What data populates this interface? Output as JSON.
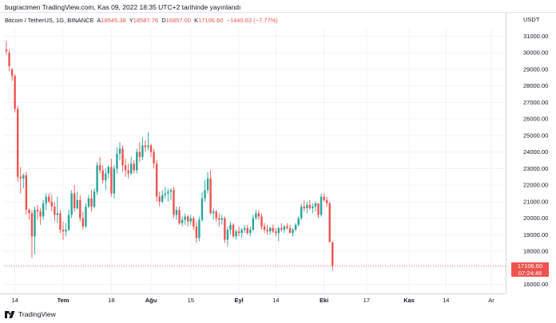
{
  "header": {
    "publisher_line": "bugracimen TradingView.com, Kas 09, 2022 18:35 UTC+2 tarihinde yayınlandı"
  },
  "legend": {
    "symbol": "Bitcoin / TetherUS, 1G, BINANCE",
    "a_label": "A",
    "a_value": "18545.38",
    "y_label": "Y",
    "y_value": "18587.76",
    "d_label": "D",
    "d_value": "16857.00",
    "k_label": "K",
    "k_value": "17106.60",
    "change": "−1440.63 (−7.77%)"
  },
  "footer": {
    "brand": "TradingView"
  },
  "current_price": {
    "price": "17106.60",
    "countdown": "07:24:48"
  },
  "colors": {
    "up": "#26a69a",
    "down": "#ef5350",
    "dotted_line": "#ef5350",
    "text": "#131722"
  },
  "chart_data": {
    "type": "candlestick",
    "title": "Bitcoin / TetherUS, 1G, BINANCE",
    "currency": "USDT",
    "y_ticks": [
      "31000.00",
      "30000.00",
      "29000.00",
      "28000.00",
      "27000.00",
      "26000.00",
      "25000.00",
      "24000.00",
      "23000.00",
      "22000.00",
      "21000.00",
      "20000.00",
      "19000.00",
      "18000.00",
      "17000.00",
      "16000.00"
    ],
    "ylim": [
      15600,
      31700
    ],
    "x_ticks": [
      {
        "label": "14",
        "day": 3,
        "bold": false
      },
      {
        "label": "Tem",
        "day": 20,
        "bold": true
      },
      {
        "label": "18",
        "day": 37,
        "bold": false
      },
      {
        "label": "Ağu",
        "day": 51,
        "bold": true
      },
      {
        "label": "15",
        "day": 65,
        "bold": false
      },
      {
        "label": "Eyl",
        "day": 82,
        "bold": true
      },
      {
        "label": "14",
        "day": 95,
        "bold": false
      },
      {
        "label": "Eki",
        "day": 112,
        "bold": true
      },
      {
        "label": "17",
        "day": 127,
        "bold": false
      },
      {
        "label": "Kas",
        "day": 142,
        "bold": true
      },
      {
        "label": "14",
        "day": 155,
        "bold": false
      },
      {
        "label": "Ar",
        "day": 171,
        "bold": false
      }
    ],
    "ohlc_order": [
      "open",
      "high",
      "low",
      "close"
    ],
    "candles": [
      [
        30200,
        30700,
        29900,
        30100
      ],
      [
        30000,
        30200,
        28900,
        29200
      ],
      [
        29000,
        29100,
        28300,
        28600
      ],
      [
        28600,
        28700,
        26400,
        26600
      ],
      [
        26600,
        26800,
        22200,
        22500
      ],
      [
        22500,
        23100,
        21500,
        22400
      ],
      [
        22400,
        22700,
        21800,
        22600
      ],
      [
        22600,
        22800,
        20200,
        20500
      ],
      [
        20500,
        20600,
        19900,
        20300
      ],
      [
        20300,
        20500,
        17600,
        18900
      ],
      [
        18900,
        20700,
        17800,
        20500
      ],
      [
        20500,
        20800,
        19900,
        20400
      ],
      [
        20400,
        20600,
        19600,
        20100
      ],
      [
        20100,
        21100,
        19900,
        20900
      ],
      [
        20900,
        21500,
        20500,
        21300
      ],
      [
        21300,
        21500,
        20900,
        21000
      ],
      [
        21000,
        21400,
        20400,
        20700
      ],
      [
        20700,
        21000,
        19800,
        20200
      ],
      [
        20200,
        21300,
        19700,
        20300
      ],
      [
        20300,
        20500,
        19100,
        19300
      ],
      [
        19300,
        19800,
        18700,
        19200
      ],
      [
        19200,
        19700,
        18900,
        19300
      ],
      [
        19300,
        20500,
        19200,
        20200
      ],
      [
        20200,
        21700,
        20000,
        21500
      ],
      [
        21500,
        22000,
        20400,
        20600
      ],
      [
        20600,
        21600,
        20500,
        21100
      ],
      [
        21100,
        21400,
        19800,
        20000
      ],
      [
        20000,
        20400,
        19300,
        19500
      ],
      [
        19500,
        20900,
        19400,
        20700
      ],
      [
        20700,
        21400,
        20600,
        21200
      ],
      [
        21200,
        21700,
        20400,
        20700
      ],
      [
        20700,
        21800,
        20600,
        21600
      ],
      [
        21600,
        23400,
        21400,
        23200
      ],
      [
        23200,
        23700,
        22700,
        22900
      ],
      [
        22900,
        23200,
        22100,
        22300
      ],
      [
        22300,
        23000,
        21700,
        22700
      ],
      [
        22700,
        23200,
        22400,
        23100
      ],
      [
        23100,
        23600,
        21300,
        21500
      ],
      [
        21500,
        23200,
        21200,
        23000
      ],
      [
        23000,
        24300,
        22700,
        23900
      ],
      [
        23900,
        24600,
        23500,
        24200
      ],
      [
        24200,
        24400,
        22800,
        23200
      ],
      [
        23200,
        23600,
        22500,
        22900
      ],
      [
        22900,
        23300,
        22400,
        22700
      ],
      [
        22700,
        23700,
        22600,
        23300
      ],
      [
        23300,
        23500,
        22700,
        22900
      ],
      [
        22900,
        24200,
        22700,
        24000
      ],
      [
        24000,
        24600,
        23400,
        23700
      ],
      [
        23700,
        24900,
        23500,
        24400
      ],
      [
        24400,
        24700,
        24000,
        24300
      ],
      [
        24300,
        25200,
        24100,
        24400
      ],
      [
        24400,
        24500,
        23700,
        24000
      ],
      [
        24000,
        24200,
        23000,
        23300
      ],
      [
        23300,
        23500,
        21000,
        21300
      ],
      [
        21300,
        21600,
        20700,
        21000
      ],
      [
        21000,
        21700,
        20900,
        21400
      ],
      [
        21400,
        21900,
        21200,
        21500
      ],
      [
        21500,
        21800,
        21000,
        21600
      ],
      [
        21600,
        21800,
        21100,
        21700
      ],
      [
        21700,
        21900,
        20000,
        20200
      ],
      [
        20200,
        20700,
        19900,
        20500
      ],
      [
        20500,
        20700,
        19600,
        19700
      ],
      [
        19700,
        20100,
        19500,
        19900
      ],
      [
        19900,
        20300,
        19600,
        20100
      ],
      [
        20100,
        20200,
        19500,
        19800
      ],
      [
        19800,
        20200,
        19600,
        20000
      ],
      [
        20000,
        20100,
        19300,
        19500
      ],
      [
        19500,
        19800,
        18500,
        18800
      ],
      [
        18800,
        20100,
        18600,
        19900
      ],
      [
        19900,
        21600,
        19800,
        21200
      ],
      [
        21200,
        22300,
        21000,
        21700
      ],
      [
        21700,
        22800,
        21500,
        22400
      ],
      [
        22400,
        22900,
        20200,
        20300
      ],
      [
        20300,
        20600,
        19900,
        20400
      ],
      [
        20400,
        20500,
        19800,
        20000
      ],
      [
        20000,
        20300,
        19500,
        19900
      ],
      [
        19900,
        20200,
        19600,
        20000
      ],
      [
        20000,
        20100,
        18500,
        18700
      ],
      [
        18700,
        19500,
        18300,
        19300
      ],
      [
        19300,
        19800,
        19000,
        19600
      ],
      [
        19600,
        19700,
        18800,
        18900
      ],
      [
        18900,
        19300,
        18700,
        19200
      ],
      [
        19200,
        19500,
        18900,
        19100
      ],
      [
        19100,
        19400,
        18800,
        19300
      ],
      [
        19300,
        19600,
        19100,
        19400
      ],
      [
        19400,
        19600,
        19000,
        19100
      ],
      [
        19100,
        19500,
        18900,
        19300
      ],
      [
        19300,
        20200,
        19200,
        20000
      ],
      [
        20000,
        20500,
        19900,
        20300
      ],
      [
        20300,
        20500,
        19900,
        20100
      ],
      [
        20100,
        20300,
        19300,
        19500
      ],
      [
        19500,
        19700,
        19100,
        19300
      ],
      [
        19300,
        19600,
        19000,
        19200
      ],
      [
        19200,
        19500,
        19000,
        19400
      ],
      [
        19400,
        19600,
        19100,
        19200
      ],
      [
        19200,
        19400,
        18900,
        19100
      ],
      [
        19100,
        19500,
        18600,
        19400
      ],
      [
        19400,
        19700,
        19200,
        19300
      ],
      [
        19300,
        19600,
        19100,
        19500
      ],
      [
        19500,
        19700,
        19300,
        19400
      ],
      [
        19400,
        19600,
        19200,
        19100
      ],
      [
        19100,
        19400,
        18900,
        19300
      ],
      [
        19300,
        19700,
        19200,
        19600
      ],
      [
        19600,
        20100,
        19500,
        20000
      ],
      [
        20000,
        20900,
        19900,
        20700
      ],
      [
        20700,
        21100,
        20400,
        20600
      ],
      [
        20600,
        21000,
        20300,
        20800
      ],
      [
        20800,
        21100,
        20500,
        20600
      ],
      [
        20600,
        20900,
        20300,
        20700
      ],
      [
        20700,
        21000,
        20400,
        20900
      ],
      [
        20900,
        20900,
        20000,
        20200
      ],
      [
        20200,
        21500,
        20100,
        21300
      ],
      [
        21300,
        21500,
        21000,
        21100
      ],
      [
        21100,
        21300,
        20700,
        20900
      ],
      [
        20900,
        21000,
        18600,
        18550
      ],
      [
        18545.38,
        18587.76,
        16857.0,
        17106.6
      ]
    ]
  }
}
